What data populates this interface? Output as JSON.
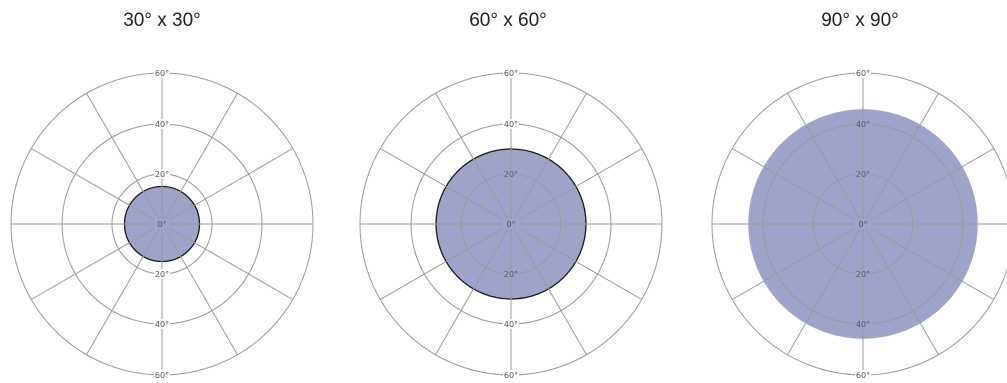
{
  "panels": [
    {
      "title": "30° x 30°",
      "beam_angle_deg": 30,
      "beam_outlined": true,
      "ring_labels": {
        "center": "0°",
        "r20": "20°",
        "r40": "40°",
        "r60": "60°"
      }
    },
    {
      "title": "60° x 60°",
      "beam_angle_deg": 60,
      "beam_outlined": true,
      "ring_labels": {
        "center": "0°",
        "r20": "20°",
        "r40": "40°",
        "r60": "60°"
      }
    },
    {
      "title": "90° x 90°",
      "beam_angle_deg": 90,
      "beam_outlined": false,
      "ring_labels": {
        "center": "0°",
        "r20": "20°",
        "r40": "40°",
        "r60": "60°"
      }
    }
  ],
  "colors": {
    "beam_fill": "#9fa3c9",
    "beam_outline": "#1a1a1a",
    "grid_line": "#9a9a9a",
    "label_text": "#555555"
  }
}
